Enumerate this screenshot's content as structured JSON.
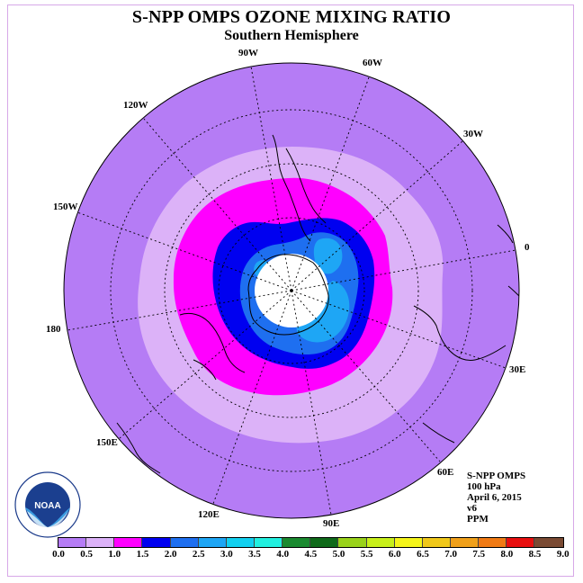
{
  "title": "S-NPP OMPS OZONE MIXING RATIO",
  "subtitle": "Southern Hemisphere",
  "longitude_labels": [
    "90W",
    "60W",
    "30W",
    "0",
    "30E",
    "60E",
    "90E",
    "120E",
    "150E",
    "180",
    "150W",
    "120W"
  ],
  "info": [
    "S-NPP OMPS",
    "100 hPa",
    "April 6, 2015",
    "v6",
    "PPM"
  ],
  "logo_text": "NOAA",
  "colorbar": {
    "ticks": [
      "0.0",
      "0.5",
      "1.0",
      "1.5",
      "2.0",
      "2.5",
      "3.0",
      "3.5",
      "4.0",
      "4.5",
      "5.0",
      "5.5",
      "6.0",
      "6.5",
      "7.0",
      "7.5",
      "8.0",
      "8.5",
      "9.0"
    ],
    "colors": [
      "#b57cf5",
      "#dcb2f8",
      "#ff00ff",
      "#0000f0",
      "#1e6ff0",
      "#1ea6f5",
      "#12d0f0",
      "#22f0e0",
      "#1a8a30",
      "#0f6a1a",
      "#99d21a",
      "#c8f01a",
      "#f5f51a",
      "#f0c81a",
      "#f0a01a",
      "#f07a14",
      "#e80f0f",
      "#7a4a33"
    ]
  },
  "map_colors": {
    "background": "#b57cf5",
    "band_light": "#dcb2f8",
    "band_magenta": "#ff00ff",
    "band_blue": "#0000f0",
    "band_medium": "#1e6ff0",
    "band_sky": "#1ea6f5",
    "pole": "#ffffff"
  }
}
